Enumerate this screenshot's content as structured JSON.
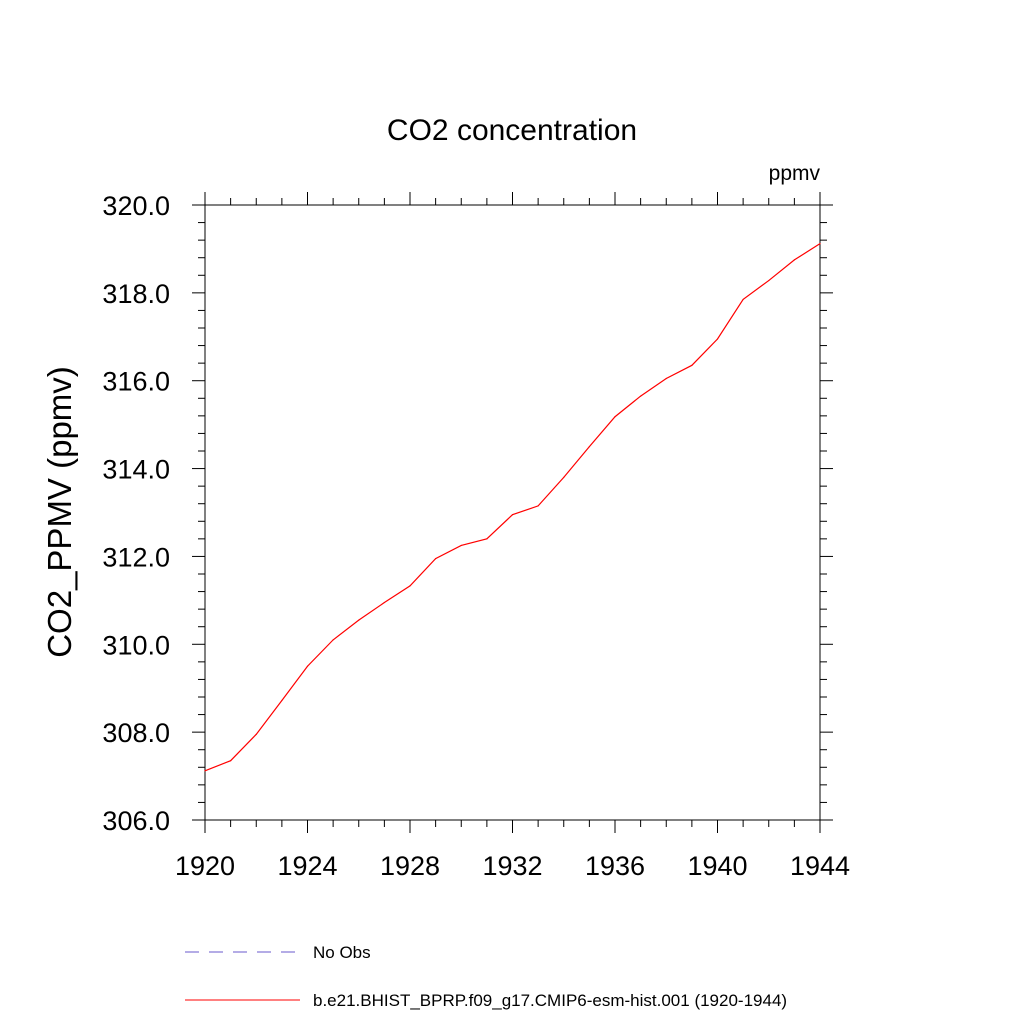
{
  "chart_data": {
    "type": "line",
    "title": "CO2 concentration",
    "units_label": "ppmv",
    "xlabel": "",
    "ylabel": "CO2_PPMV  (ppmv)",
    "xlim": [
      1920,
      1944
    ],
    "ylim": [
      306.0,
      320.0
    ],
    "x_ticks": [
      1920,
      1924,
      1928,
      1932,
      1936,
      1940,
      1944
    ],
    "x_tick_labels": [
      "1920",
      "1924",
      "1928",
      "1932",
      "1936",
      "1940",
      "1944"
    ],
    "y_ticks": [
      306.0,
      308.0,
      310.0,
      312.0,
      314.0,
      316.0,
      318.0,
      320.0
    ],
    "y_tick_labels": [
      "306.0",
      "308.0",
      "310.0",
      "312.0",
      "314.0",
      "316.0",
      "318.0",
      "320.0"
    ],
    "grid": false,
    "legend_position": "bottom",
    "series": [
      {
        "name": "No Obs",
        "color": "#6a5acd",
        "dashed": true,
        "x": [],
        "values": []
      },
      {
        "name": "b.e21.BHIST_BPRP.f09_g17.CMIP6-esm-hist.001 (1920-1944)",
        "color": "#ff0000",
        "dashed": false,
        "x": [
          1920,
          1921,
          1922,
          1923,
          1924,
          1925,
          1926,
          1927,
          1928,
          1929,
          1930,
          1931,
          1932,
          1933,
          1934,
          1935,
          1936,
          1937,
          1938,
          1939,
          1940,
          1941,
          1942,
          1943,
          1944
        ],
        "values": [
          307.12,
          307.35,
          307.95,
          308.72,
          309.5,
          310.1,
          310.55,
          310.95,
          311.33,
          311.95,
          312.25,
          312.4,
          312.95,
          313.15,
          313.8,
          314.5,
          315.18,
          315.65,
          316.05,
          316.35,
          316.95,
          317.85,
          318.28,
          318.75,
          319.12
        ]
      }
    ]
  }
}
